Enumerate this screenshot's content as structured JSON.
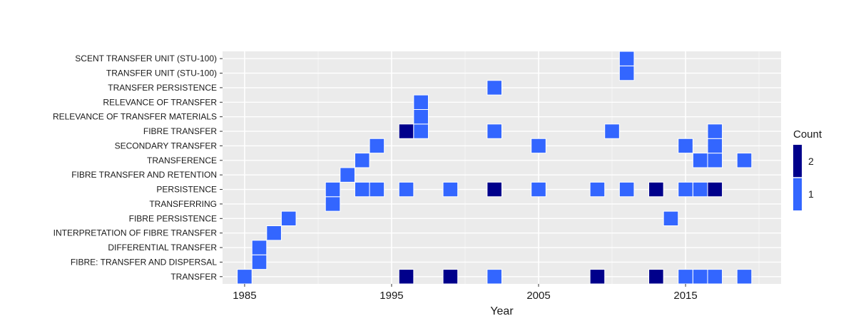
{
  "chart_data": {
    "type": "heatmap",
    "title": "",
    "xlabel": "Year",
    "ylabel": "",
    "xlim": [
      1983.5,
      2021.5
    ],
    "xticks": [
      1985,
      1995,
      2005,
      2015
    ],
    "grid": true,
    "legend_position": "right",
    "legend": {
      "title": "Count",
      "entries": [
        {
          "label": "2",
          "value": 2,
          "color": "#00008b"
        },
        {
          "label": "1",
          "value": 1,
          "color": "#3366ff"
        }
      ]
    },
    "categories": [
      "TRANSFER",
      "FIBRE: TRANSFER AND DISPERSAL",
      "DIFFERENTIAL TRANSFER",
      "INTERPRETATION OF FIBRE TRANSFER",
      "FIBRE PERSISTENCE",
      "TRANSFERRING",
      "PERSISTENCE",
      "FIBRE TRANSFER AND RETENTION",
      "TRANSFERENCE",
      "SECONDARY TRANSFER",
      "FIBRE TRANSFER",
      "RELEVANCE OF TRANSFER MATERIALS",
      "RELEVANCE OF TRANSFER",
      "TRANSFER PERSISTENCE",
      "TRANSFER UNIT (STU-100)",
      "SCENT TRANSFER UNIT (STU-100)"
    ],
    "cells": [
      {
        "y": "TRANSFER",
        "x": 1985,
        "count": 1
      },
      {
        "y": "TRANSFER",
        "x": 1996,
        "count": 2
      },
      {
        "y": "TRANSFER",
        "x": 1999,
        "count": 2
      },
      {
        "y": "TRANSFER",
        "x": 2002,
        "count": 1
      },
      {
        "y": "TRANSFER",
        "x": 2009,
        "count": 2
      },
      {
        "y": "TRANSFER",
        "x": 2013,
        "count": 2
      },
      {
        "y": "TRANSFER",
        "x": 2015,
        "count": 1
      },
      {
        "y": "TRANSFER",
        "x": 2016,
        "count": 1
      },
      {
        "y": "TRANSFER",
        "x": 2017,
        "count": 1
      },
      {
        "y": "TRANSFER",
        "x": 2019,
        "count": 1
      },
      {
        "y": "FIBRE: TRANSFER AND DISPERSAL",
        "x": 1986,
        "count": 1
      },
      {
        "y": "DIFFERENTIAL TRANSFER",
        "x": 1986,
        "count": 1
      },
      {
        "y": "INTERPRETATION OF FIBRE TRANSFER",
        "x": 1987,
        "count": 1
      },
      {
        "y": "FIBRE PERSISTENCE",
        "x": 1988,
        "count": 1
      },
      {
        "y": "FIBRE PERSISTENCE",
        "x": 2014,
        "count": 1
      },
      {
        "y": "TRANSFERRING",
        "x": 1991,
        "count": 1
      },
      {
        "y": "PERSISTENCE",
        "x": 1991,
        "count": 1
      },
      {
        "y": "PERSISTENCE",
        "x": 1993,
        "count": 1
      },
      {
        "y": "PERSISTENCE",
        "x": 1994,
        "count": 1
      },
      {
        "y": "PERSISTENCE",
        "x": 1996,
        "count": 1
      },
      {
        "y": "PERSISTENCE",
        "x": 1999,
        "count": 1
      },
      {
        "y": "PERSISTENCE",
        "x": 2002,
        "count": 2
      },
      {
        "y": "PERSISTENCE",
        "x": 2005,
        "count": 1
      },
      {
        "y": "PERSISTENCE",
        "x": 2009,
        "count": 1
      },
      {
        "y": "PERSISTENCE",
        "x": 2011,
        "count": 1
      },
      {
        "y": "PERSISTENCE",
        "x": 2013,
        "count": 2
      },
      {
        "y": "PERSISTENCE",
        "x": 2015,
        "count": 1
      },
      {
        "y": "PERSISTENCE",
        "x": 2016,
        "count": 1
      },
      {
        "y": "PERSISTENCE",
        "x": 2017,
        "count": 2
      },
      {
        "y": "FIBRE TRANSFER AND RETENTION",
        "x": 1992,
        "count": 1
      },
      {
        "y": "TRANSFERENCE",
        "x": 1993,
        "count": 1
      },
      {
        "y": "TRANSFERENCE",
        "x": 2016,
        "count": 1
      },
      {
        "y": "TRANSFERENCE",
        "x": 2017,
        "count": 1
      },
      {
        "y": "TRANSFERENCE",
        "x": 2019,
        "count": 1
      },
      {
        "y": "SECONDARY TRANSFER",
        "x": 1994,
        "count": 1
      },
      {
        "y": "SECONDARY TRANSFER",
        "x": 2005,
        "count": 1
      },
      {
        "y": "SECONDARY TRANSFER",
        "x": 2015,
        "count": 1
      },
      {
        "y": "SECONDARY TRANSFER",
        "x": 2017,
        "count": 1
      },
      {
        "y": "FIBRE TRANSFER",
        "x": 1996,
        "count": 2
      },
      {
        "y": "FIBRE TRANSFER",
        "x": 1997,
        "count": 1
      },
      {
        "y": "FIBRE TRANSFER",
        "x": 2002,
        "count": 1
      },
      {
        "y": "FIBRE TRANSFER",
        "x": 2010,
        "count": 1
      },
      {
        "y": "FIBRE TRANSFER",
        "x": 2017,
        "count": 1
      },
      {
        "y": "RELEVANCE OF TRANSFER MATERIALS",
        "x": 1997,
        "count": 1
      },
      {
        "y": "RELEVANCE OF TRANSFER",
        "x": 1997,
        "count": 1
      },
      {
        "y": "TRANSFER PERSISTENCE",
        "x": 2002,
        "count": 1
      },
      {
        "y": "TRANSFER UNIT (STU-100)",
        "x": 2011,
        "count": 1
      },
      {
        "y": "SCENT TRANSFER UNIT (STU-100)",
        "x": 2011,
        "count": 1
      }
    ]
  }
}
